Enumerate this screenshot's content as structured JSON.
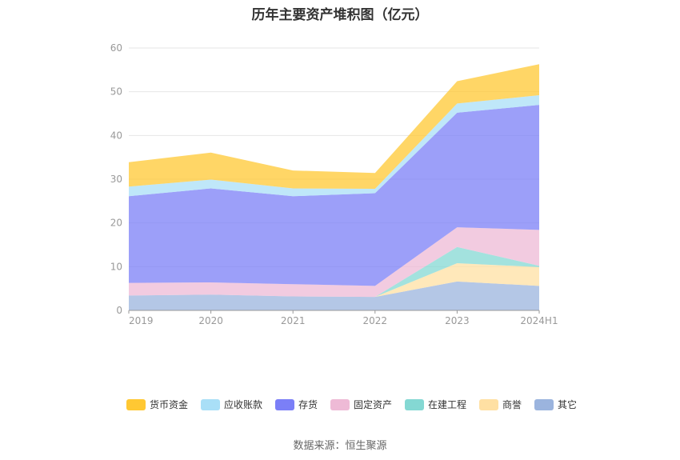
{
  "chart_data": {
    "type": "area",
    "stacked": true,
    "title": "历年主要资产堆积图（亿元）",
    "x": [
      "2019",
      "2020",
      "2021",
      "2022",
      "2023",
      "2024H1"
    ],
    "ylim": [
      0,
      60
    ],
    "yticks": [
      0,
      10,
      20,
      30,
      40,
      50,
      60
    ],
    "grid": true,
    "legend_position": "bottom",
    "series": [
      {
        "name": "货币资金",
        "color": "#FFC833",
        "values": [
          5.6,
          6.2,
          4.1,
          3.6,
          5.1,
          7.1
        ]
      },
      {
        "name": "应收账款",
        "color": "#A9DFF7",
        "values": [
          2.2,
          2.0,
          1.8,
          1.0,
          2.1,
          2.2
        ]
      },
      {
        "name": "存货",
        "color": "#7B7FF7",
        "values": [
          19.8,
          21.5,
          20.1,
          21.2,
          26.2,
          28.6
        ]
      },
      {
        "name": "固定资产",
        "color": "#EEBAD6",
        "values": [
          2.9,
          2.8,
          2.8,
          2.5,
          4.5,
          8.2
        ]
      },
      {
        "name": "在建工程",
        "color": "#84D8D3",
        "values": [
          0.0,
          0.0,
          0.0,
          0.0,
          3.7,
          0.3
        ]
      },
      {
        "name": "商誉",
        "color": "#FFE0A3",
        "values": [
          0.0,
          0.0,
          0.0,
          0.0,
          4.2,
          4.3
        ]
      },
      {
        "name": "其它",
        "color": "#9BB4DE",
        "values": [
          3.4,
          3.6,
          3.2,
          3.1,
          6.6,
          5.6
        ]
      }
    ]
  },
  "source_text": "数据来源：恒生聚源"
}
